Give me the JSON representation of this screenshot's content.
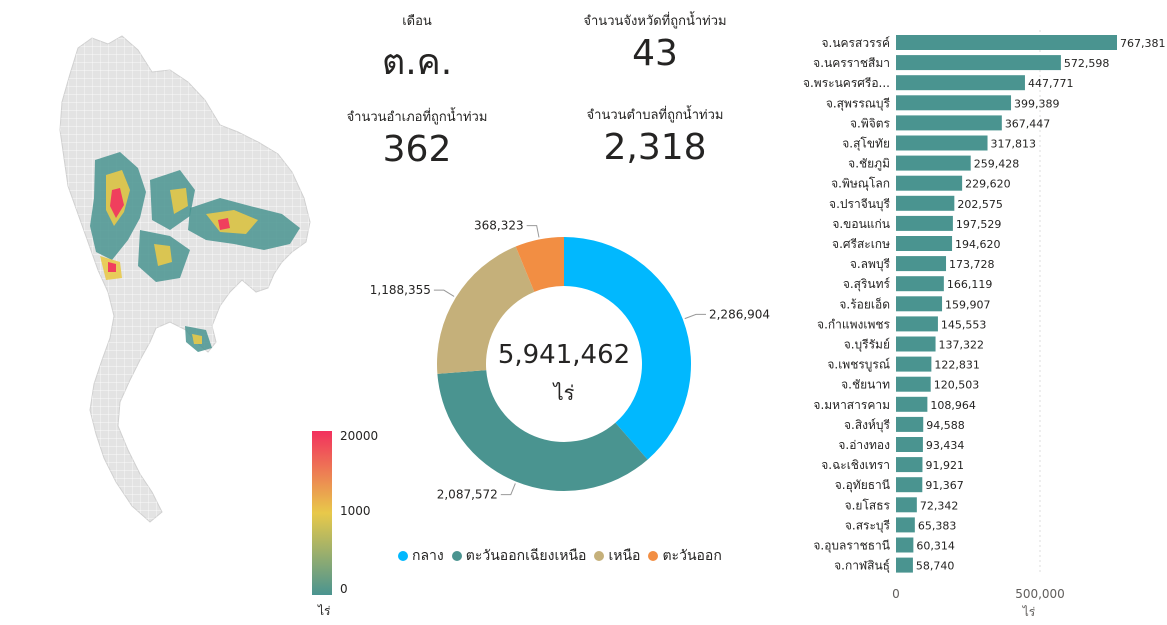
{
  "kpis": {
    "month_label": "เดือน",
    "month_value": "ต.ค.",
    "provinces_label": "จำนวนจังหวัดที่ถูกน้ำท่วม",
    "provinces_value": "43",
    "districts_label": "จำนวนอำเภอที่ถูกน้ำท่วม",
    "districts_value": "362",
    "subdistricts_label": "จำนวนตำบลที่ถูกน้ำท่วม",
    "subdistricts_value": "2,318"
  },
  "map": {
    "legend_max": "20000",
    "legend_mid": "1000",
    "legend_min": "0",
    "legend_unit": "ไร่",
    "colors": {
      "low": "#4a9490",
      "mid": "#e8c94a",
      "high": "#f2305e",
      "base": "#e3e3e3"
    }
  },
  "chart_data": [
    {
      "type": "pie",
      "style": "donut",
      "center_value": "5,941,462",
      "center_unit": "ไร่",
      "categories": [
        "กลาง",
        "ตะวันออกเฉียงเหนือ",
        "เหนือ",
        "ตะวันออก"
      ],
      "values": [
        2286904,
        2087572,
        1188355,
        368323
      ],
      "value_labels": [
        "2,286,904",
        "2,087,572",
        "1,188,355",
        "368,323"
      ],
      "colors": [
        "#01b8fe",
        "#4a9490",
        "#c5b07a",
        "#f28e43"
      ],
      "legend": "bottom"
    },
    {
      "type": "bar",
      "orientation": "horizontal",
      "categories": [
        "จ.นครสวรรค์",
        "จ.นครราชสีมา",
        "จ.พระนครศรีอ...",
        "จ.สุพรรณบุรี",
        "จ.พิจิตร",
        "จ.สุโขทัย",
        "จ.ชัยภูมิ",
        "จ.พิษณุโลก",
        "จ.ปราจีนบุรี",
        "จ.ขอนแก่น",
        "จ.ศรีสะเกษ",
        "จ.ลพบุรี",
        "จ.สุรินทร์",
        "จ.ร้อยเอ็ด",
        "จ.กำแพงเพชร",
        "จ.บุรีรัมย์",
        "จ.เพชรบูรณ์",
        "จ.ชัยนาท",
        "จ.มหาสารคาม",
        "จ.สิงห์บุรี",
        "จ.อ่างทอง",
        "จ.ฉะเชิงเทรา",
        "จ.อุทัยธานี",
        "จ.ยโสธร",
        "จ.สระบุรี",
        "จ.อุบลราชธานี",
        "จ.กาฬสินธุ์"
      ],
      "values": [
        767381,
        572598,
        447771,
        399389,
        367447,
        317813,
        259428,
        229620,
        202575,
        197529,
        194620,
        173728,
        166119,
        159907,
        145553,
        137322,
        122831,
        120503,
        108964,
        94588,
        93434,
        91921,
        91367,
        72342,
        65383,
        60314,
        58740
      ],
      "value_labels": [
        "767,381",
        "572,598",
        "447,771",
        "399,389",
        "367,447",
        "317,813",
        "259,428",
        "229,620",
        "202,575",
        "197,529",
        "194,620",
        "173,728",
        "166,119",
        "159,907",
        "145,553",
        "137,322",
        "122,831",
        "120,503",
        "108,964",
        "94,588",
        "93,434",
        "91,921",
        "91,367",
        "72,342",
        "65,383",
        "60,314",
        "58,740"
      ],
      "xticks": [
        "0",
        "500,000"
      ],
      "xlabel": "ไร่",
      "xlim": [
        0,
        767381
      ],
      "color": "#4a9490"
    }
  ]
}
